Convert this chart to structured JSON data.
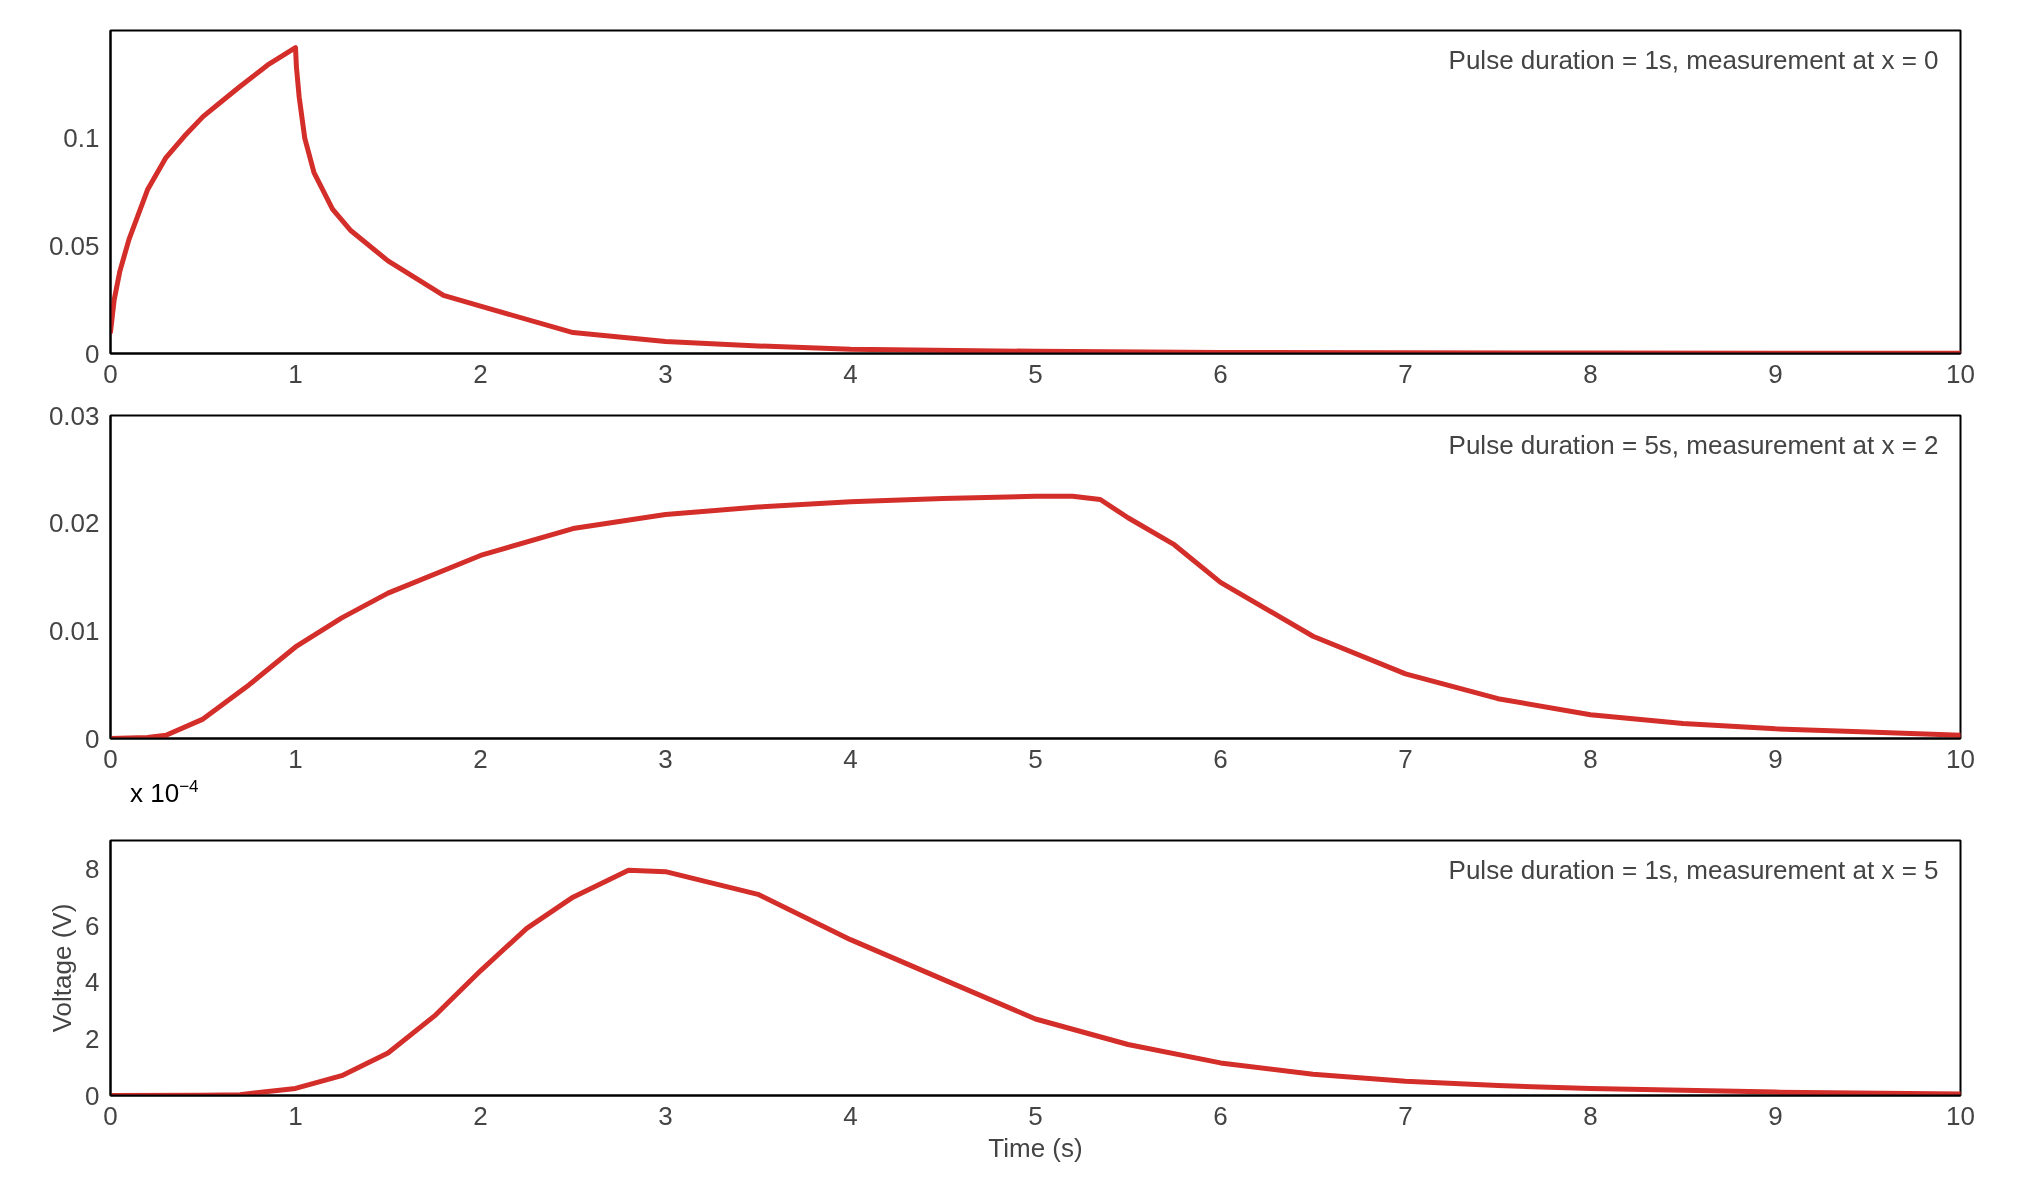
{
  "chart_data": [
    {
      "type": "line",
      "xlim": [
        0,
        10
      ],
      "ylim": [
        0,
        0.15
      ],
      "xticks": [
        0,
        1,
        2,
        3,
        4,
        5,
        6,
        7,
        8,
        9,
        10
      ],
      "yticks": [
        0,
        0.05,
        0.1
      ],
      "annotations": [
        "Pulse duration = 1s, measurement at x = 0"
      ],
      "series": [
        {
          "color": "#d42e2a",
          "x": [
            0,
            0.02,
            0.05,
            0.1,
            0.2,
            0.3,
            0.4,
            0.5,
            0.6,
            0.7,
            0.85,
            1.0,
            1.005,
            1.02,
            1.05,
            1.1,
            1.2,
            1.3,
            1.5,
            1.8,
            2,
            2.5,
            3,
            3.5,
            4,
            5,
            6,
            7,
            8,
            9,
            10
          ],
          "values": [
            0.01,
            0.025,
            0.038,
            0.053,
            0.076,
            0.091,
            0.101,
            0.11,
            0.117,
            0.124,
            0.134,
            0.142,
            0.133,
            0.119,
            0.1,
            0.084,
            0.067,
            0.057,
            0.043,
            0.027,
            0.022,
            0.0097,
            0.0056,
            0.0035,
            0.002,
            0.001,
            0.0005,
            0.0003,
            0.0002,
            0.0001,
            0.0001
          ]
        }
      ]
    },
    {
      "type": "line",
      "xlim": [
        0,
        10
      ],
      "ylim": [
        0,
        0.03
      ],
      "xticks": [
        0,
        1,
        2,
        3,
        4,
        5,
        6,
        7,
        8,
        9,
        10
      ],
      "yticks": [
        0,
        0.01,
        0.02,
        0.03
      ],
      "annotations": [
        "Pulse duration = 5s, measurement at x = 2"
      ],
      "series": [
        {
          "color": "#d42e2a",
          "x": [
            0,
            0.2,
            0.3,
            0.5,
            0.75,
            1,
            1.25,
            1.5,
            2,
            2.5,
            3,
            3.5,
            4,
            4.5,
            5,
            5.2,
            5.35,
            5.5,
            5.75,
            6,
            6.5,
            7,
            7.5,
            8,
            8.5,
            9,
            9.5,
            10
          ],
          "values": [
            0,
            0.0001,
            0.0003,
            0.0018,
            0.005,
            0.0085,
            0.0112,
            0.0135,
            0.017,
            0.0195,
            0.0208,
            0.0215,
            0.022,
            0.0223,
            0.0225,
            0.0225,
            0.0222,
            0.0205,
            0.018,
            0.0145,
            0.0095,
            0.006,
            0.0037,
            0.0022,
            0.0014,
            0.0009,
            0.0006,
            0.0003
          ]
        }
      ]
    },
    {
      "type": "line",
      "xlim": [
        0,
        10
      ],
      "ylim": [
        0,
        9
      ],
      "xticks": [
        0,
        1,
        2,
        3,
        4,
        5,
        6,
        7,
        8,
        9,
        10
      ],
      "yticks": [
        0,
        2,
        4,
        6,
        8
      ],
      "xlabel": "Time (s)",
      "ylabel": "Voltage (V)",
      "annotations": [
        "Pulse duration = 1s, measurement at x = 5",
        "x 10$^{−4}$"
      ],
      "series": [
        {
          "color": "#d42e2a",
          "x": [
            0,
            0.5,
            0.7,
            1,
            1.25,
            1.5,
            1.75,
            2,
            2.25,
            2.5,
            2.8,
            3,
            3.5,
            4,
            4.5,
            5,
            5.5,
            6,
            6.5,
            7,
            7.5,
            8,
            9,
            10
          ],
          "values": [
            0,
            0.01,
            0.03,
            0.25,
            0.7,
            1.5,
            2.8,
            4.4,
            5.9,
            7.0,
            7.95,
            7.9,
            7.1,
            5.5,
            4.1,
            2.7,
            1.8,
            1.15,
            0.75,
            0.5,
            0.35,
            0.25,
            0.12,
            0.05
          ]
        }
      ]
    }
  ]
}
